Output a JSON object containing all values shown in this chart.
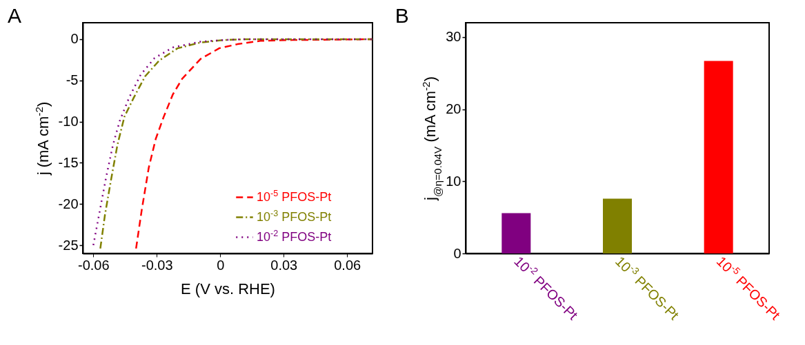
{
  "chart_data": [
    {
      "type": "line",
      "title": "A",
      "xlabel": "E (V vs. RHE)",
      "ylabel": "j (mA cm$^{-2}$)",
      "xlim": [
        -0.065,
        0.072
      ],
      "ylim": [
        -26,
        2
      ],
      "xticks": [
        -0.06,
        -0.03,
        0,
        0.03,
        0.06
      ],
      "yticks": [
        -25,
        -20,
        -15,
        -10,
        -5,
        0
      ],
      "legend": "bottom right",
      "series": [
        {
          "name": "10$^{-5}$ PFOS-Pt",
          "color": "#ff0000",
          "line_style": "dashed",
          "x": [
            -0.0398,
            -0.0371,
            -0.0338,
            -0.0305,
            -0.0267,
            -0.0224,
            -0.018,
            -0.0093,
            -0.0005,
            0.0082,
            0.019,
            0.034,
            0.072
          ],
          "values": [
            -25.4,
            -20.7,
            -15.6,
            -12.1,
            -9.4,
            -6.7,
            -4.8,
            -2.4,
            -1.1,
            -0.6,
            -0.2,
            -0.1,
            0
          ]
        },
        {
          "name": "10$^{-3}$ PFOS-Pt",
          "color": "#808000",
          "line_style": "dashdot",
          "x": [
            -0.0567,
            -0.0545,
            -0.0518,
            -0.0486,
            -0.0453,
            -0.0409,
            -0.0355,
            -0.0289,
            -0.0202,
            -0.0093,
            0.0016,
            0.0125,
            0.072
          ],
          "values": [
            -25.4,
            -21.3,
            -17.3,
            -12.8,
            -9.4,
            -7.1,
            -4.5,
            -2.6,
            -1.1,
            -0.4,
            -0.1,
            0,
            0
          ]
        },
        {
          "name": "10$^{-2}$ PFOS-Pt",
          "color": "#800080",
          "line_style": "dotted",
          "x": [
            -0.06,
            -0.0573,
            -0.054,
            -0.0507,
            -0.0475,
            -0.0431,
            -0.0376,
            -0.0311,
            -0.0224,
            -0.0093,
            0.0016,
            0.0125,
            0.072
          ],
          "values": [
            -25,
            -21.3,
            -16.8,
            -12.8,
            -9.9,
            -7.1,
            -4.3,
            -2.3,
            -1.0,
            -0.3,
            -0.1,
            0,
            0
          ]
        }
      ]
    },
    {
      "type": "bar",
      "title": "B",
      "ylabel": "j$_{@η=0.04V}$ (mA cm$^{-2}$)",
      "ylim": [
        0,
        32
      ],
      "yticks": [
        0,
        10,
        20,
        30
      ],
      "categories": [
        "10$^{-2}$ PFOS-Pt",
        "10$^{-3}$ PFOS-Pt",
        "10$^{-5}$ PFOS-Pt"
      ],
      "values": [
        5.6,
        7.6,
        26.7
      ],
      "colors": [
        "#800080",
        "#808000",
        "#ff0000"
      ]
    }
  ]
}
